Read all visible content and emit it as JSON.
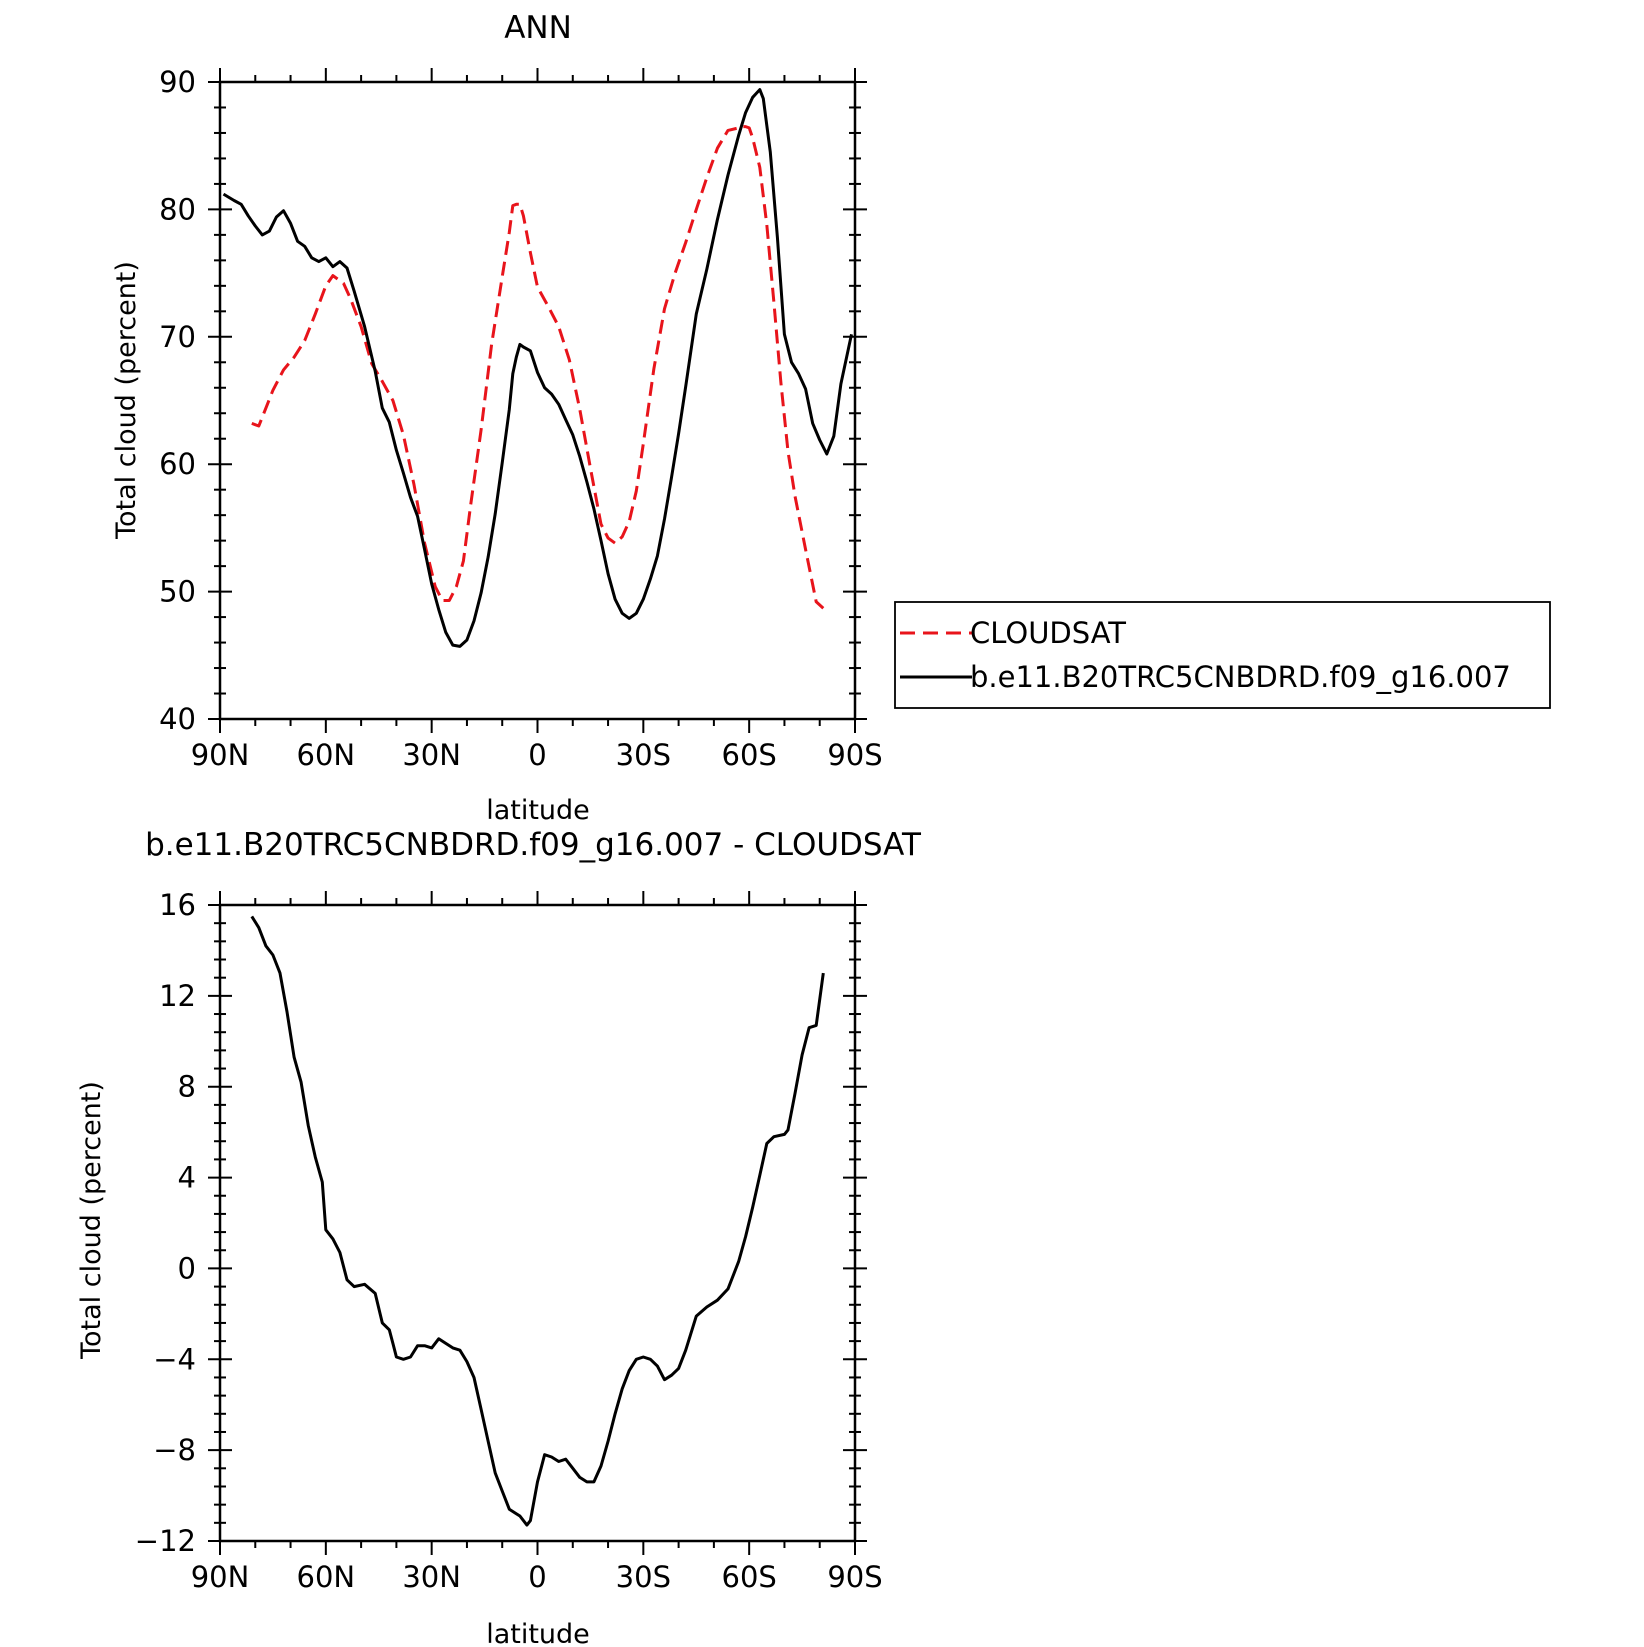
{
  "colors": {
    "observations": "#e8141b",
    "model": "#000000",
    "difference": "#000000",
    "axes": "#000000"
  },
  "chart_data": [
    {
      "type": "line",
      "title": "ANN",
      "xlabel": "latitude",
      "ylabel": "Total cloud (percent)",
      "xlim": [
        90,
        -90
      ],
      "ylim": [
        40,
        90
      ],
      "x_ticks": [
        90,
        60,
        30,
        0,
        -30,
        -60,
        -90
      ],
      "x_tick_labels": [
        "90N",
        "60N",
        "30N",
        "0",
        "30S",
        "60S",
        "90S"
      ],
      "y_ticks": [
        40,
        50,
        60,
        70,
        80,
        90
      ],
      "y_tick_labels": [
        "40",
        "50",
        "60",
        "70",
        "80",
        "90"
      ],
      "grid": false,
      "legend_position": "right",
      "series": [
        {
          "name": "CLOUDSAT",
          "style": "dashed",
          "color": "#e8141b",
          "x": [
            81,
            79,
            75,
            72,
            69,
            66,
            63,
            60,
            58,
            55,
            53,
            50,
            47,
            44,
            41,
            38,
            35,
            32,
            29,
            27,
            25,
            23,
            21,
            19,
            16,
            13,
            10,
            8,
            7,
            6,
            5,
            4,
            2,
            0,
            -3,
            -6,
            -9,
            -12,
            -15,
            -18,
            -20,
            -22,
            -24,
            -26,
            -28,
            -30,
            -33,
            -36,
            -39,
            -42,
            -45,
            -48,
            -51,
            -54,
            -57,
            -58,
            -59,
            -60,
            -61,
            -63,
            -65,
            -67,
            -69,
            -71,
            -73,
            -76,
            -79,
            -81
          ],
          "y": [
            63.2,
            63.0,
            65.8,
            67.4,
            68.4,
            69.7,
            71.8,
            74.0,
            74.8,
            74.2,
            73.0,
            70.8,
            67.9,
            66.5,
            65.0,
            62.3,
            58.4,
            53.8,
            50.4,
            49.3,
            49.3,
            50.4,
            52.4,
            56.7,
            62.7,
            69.4,
            74.7,
            78.2,
            80.3,
            80.4,
            80.4,
            79.5,
            76.6,
            73.9,
            72.4,
            70.8,
            68.2,
            64.3,
            59.7,
            55.3,
            54.2,
            53.8,
            54.3,
            55.5,
            57.9,
            61.6,
            67.5,
            72.2,
            75.0,
            77.4,
            80.0,
            82.5,
            84.8,
            86.2,
            86.4,
            86.5,
            86.5,
            86.4,
            85.6,
            83.3,
            78.8,
            72.7,
            66.4,
            61.0,
            57.5,
            53.3,
            49.2,
            48.7
          ]
        },
        {
          "name": "b.e11.B20TRC5CNBDRD.f09_g16.007",
          "style": "solid",
          "color": "#000000",
          "x": [
            89,
            86,
            84,
            82,
            80,
            78,
            76,
            74,
            72,
            70,
            68,
            66,
            64,
            62,
            60,
            58,
            56,
            54,
            52,
            49,
            46,
            44,
            42,
            40,
            38,
            36,
            34,
            32,
            30,
            28,
            26,
            24,
            22,
            20,
            18,
            16,
            14,
            12,
            10,
            8,
            7,
            6,
            5,
            4,
            2,
            0,
            -2,
            -4,
            -6,
            -8,
            -10,
            -12,
            -14,
            -16,
            -18,
            -20,
            -22,
            -24,
            -26,
            -28,
            -30,
            -32,
            -34,
            -36,
            -38,
            -40,
            -42,
            -45,
            -48,
            -51,
            -54,
            -57,
            -59,
            -61,
            -62,
            -63,
            -64,
            -66,
            -68,
            -70,
            -72,
            -74,
            -76,
            -78,
            -80,
            -82,
            -84,
            -86,
            -89
          ],
          "y": [
            81.2,
            80.7,
            80.4,
            79.5,
            78.7,
            78.0,
            78.3,
            79.4,
            79.9,
            78.9,
            77.5,
            77.1,
            76.2,
            75.9,
            76.2,
            75.5,
            75.9,
            75.4,
            73.6,
            70.8,
            67.3,
            64.4,
            63.3,
            61.1,
            59.3,
            57.4,
            55.9,
            53.3,
            50.6,
            48.6,
            46.8,
            45.8,
            45.7,
            46.2,
            47.7,
            49.9,
            52.7,
            56.1,
            60.1,
            64.3,
            67.1,
            68.4,
            69.4,
            69.2,
            68.9,
            67.2,
            66.0,
            65.5,
            64.7,
            63.5,
            62.3,
            60.6,
            58.6,
            56.5,
            54.0,
            51.4,
            49.4,
            48.3,
            47.9,
            48.3,
            49.4,
            51.0,
            52.8,
            55.7,
            59.0,
            62.4,
            66.1,
            71.8,
            75.3,
            79.2,
            82.7,
            85.8,
            87.6,
            88.8,
            89.1,
            89.4,
            88.7,
            84.5,
            77.8,
            70.2,
            68.0,
            67.1,
            65.9,
            63.2,
            61.9,
            60.8,
            62.2,
            66.3,
            70.2
          ]
        }
      ]
    },
    {
      "type": "line",
      "title": "b.e11.B20TRC5CNBDRD.f09_g16.007 - CLOUDSAT",
      "xlabel": "latitude",
      "ylabel": "Total cloud (percent)",
      "xlim": [
        90,
        -90
      ],
      "ylim": [
        -12,
        16
      ],
      "x_ticks": [
        90,
        60,
        30,
        0,
        -30,
        -60,
        -90
      ],
      "x_tick_labels": [
        "90N",
        "60N",
        "30N",
        "0",
        "30S",
        "60S",
        "90S"
      ],
      "y_ticks": [
        -12,
        -8,
        -4,
        0,
        4,
        8,
        12,
        16
      ],
      "y_tick_labels": [
        "−12",
        "−8",
        "−4",
        "0",
        "4",
        "8",
        "12",
        "16"
      ],
      "grid": false,
      "series": [
        {
          "style": "solid",
          "color": "#000000",
          "x": [
            81,
            79,
            77,
            75,
            73,
            71,
            69,
            67,
            65,
            63,
            61,
            60,
            58,
            56,
            54,
            52,
            49,
            46,
            44,
            42,
            41,
            40,
            38,
            36,
            34,
            32,
            30,
            28,
            26,
            24,
            22,
            20,
            18,
            16,
            14,
            12,
            10,
            8,
            6,
            5,
            3,
            2,
            0,
            -2,
            -4,
            -6,
            -8,
            -10,
            -12,
            -14,
            -16,
            -18,
            -20,
            -22,
            -24,
            -26,
            -28,
            -30,
            -32,
            -34,
            -36,
            -38,
            -40,
            -42,
            -45,
            -48,
            -51,
            -54,
            -57,
            -59,
            -61,
            -63,
            -65,
            -67,
            -70,
            -71,
            -73,
            -75,
            -77,
            -79,
            -81
          ],
          "y": [
            15.5,
            15.0,
            14.2,
            13.8,
            13.0,
            11.3,
            9.3,
            8.2,
            6.3,
            4.9,
            3.8,
            1.7,
            1.3,
            0.7,
            -0.5,
            -0.8,
            -0.7,
            -1.1,
            -2.4,
            -2.7,
            -3.3,
            -3.9,
            -4.0,
            -3.9,
            -3.4,
            -3.4,
            -3.5,
            -3.1,
            -3.3,
            -3.5,
            -3.6,
            -4.1,
            -4.8,
            -6.2,
            -7.6,
            -9.0,
            -9.8,
            -10.6,
            -10.8,
            -10.9,
            -11.3,
            -11.1,
            -9.4,
            -8.2,
            -8.3,
            -8.5,
            -8.4,
            -8.8,
            -9.2,
            -9.4,
            -9.4,
            -8.7,
            -7.6,
            -6.4,
            -5.3,
            -4.5,
            -4.0,
            -3.9,
            -4.0,
            -4.3,
            -4.9,
            -4.7,
            -4.4,
            -3.6,
            -2.1,
            -1.7,
            -1.4,
            -0.9,
            0.3,
            1.4,
            2.7,
            4.1,
            5.5,
            5.8,
            5.9,
            6.1,
            7.7,
            9.4,
            10.6,
            10.7,
            13.0
          ]
        }
      ]
    }
  ]
}
